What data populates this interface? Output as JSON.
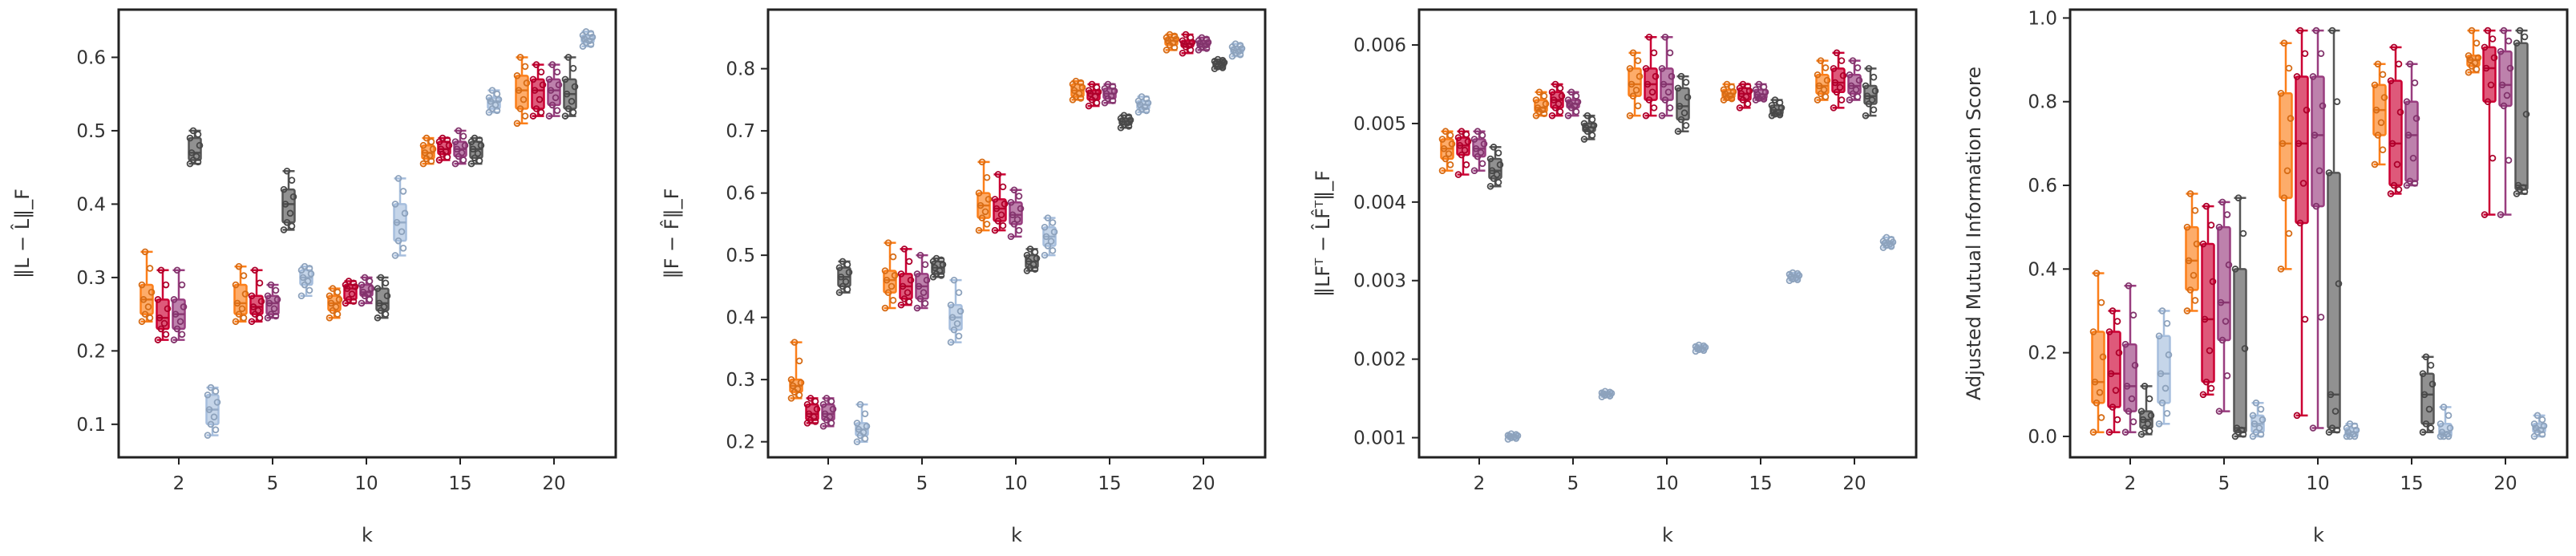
{
  "colors": {
    "orange": "#fc7f1a",
    "red": "#cc0033",
    "purple": "#993d7f",
    "darkgray": "#555555",
    "lightblue": "#a6bedd"
  },
  "chart_data": [
    {
      "type": "box",
      "title": "",
      "xlabel": "k",
      "ylabel": "‖L − L̂‖_F",
      "categories": [
        "2",
        "5",
        "10",
        "15",
        "20"
      ],
      "yticks": [
        0.1,
        0.2,
        0.3,
        0.4,
        0.5,
        0.6
      ],
      "ylim": [
        0.055,
        0.665
      ],
      "series": [
        {
          "color": "orange",
          "boxes": [
            [
              0.24,
              0.25,
              0.27,
              0.29,
              0.335
            ],
            [
              0.24,
              0.25,
              0.265,
              0.29,
              0.315
            ],
            [
              0.245,
              0.255,
              0.265,
              0.275,
              0.285
            ],
            [
              0.455,
              0.462,
              0.47,
              0.48,
              0.49
            ],
            [
              0.51,
              0.53,
              0.555,
              0.575,
              0.6
            ]
          ]
        },
        {
          "color": "red",
          "boxes": [
            [
              0.215,
              0.23,
              0.245,
              0.27,
              0.31
            ],
            [
              0.24,
              0.25,
              0.26,
              0.275,
              0.31
            ],
            [
              0.265,
              0.27,
              0.285,
              0.29,
              0.295
            ],
            [
              0.46,
              0.468,
              0.475,
              0.485,
              0.49
            ],
            [
              0.52,
              0.53,
              0.555,
              0.57,
              0.59
            ]
          ]
        },
        {
          "color": "purple",
          "boxes": [
            [
              0.215,
              0.23,
              0.25,
              0.27,
              0.31
            ],
            [
              0.245,
              0.25,
              0.265,
              0.275,
              0.29
            ],
            [
              0.265,
              0.275,
              0.28,
              0.29,
              0.3
            ],
            [
              0.455,
              0.465,
              0.475,
              0.485,
              0.5
            ],
            [
              0.52,
              0.535,
              0.555,
              0.57,
              0.59
            ]
          ]
        },
        {
          "color": "darkgray",
          "boxes": [
            [
              0.455,
              0.46,
              0.47,
              0.49,
              0.5
            ],
            [
              0.365,
              0.375,
              0.4,
              0.42,
              0.445
            ],
            [
              0.245,
              0.255,
              0.265,
              0.285,
              0.3
            ],
            [
              0.455,
              0.463,
              0.475,
              0.485,
              0.49
            ],
            [
              0.52,
              0.53,
              0.55,
              0.57,
              0.6
            ]
          ]
        },
        {
          "color": "lightblue",
          "boxes": [
            [
              0.085,
              0.1,
              0.12,
              0.14,
              0.15
            ],
            [
              0.275,
              0.29,
              0.3,
              0.31,
              0.315
            ],
            [
              0.33,
              0.35,
              0.375,
              0.4,
              0.435
            ],
            [
              0.525,
              0.53,
              0.54,
              0.545,
              0.555
            ],
            [
              0.615,
              0.62,
              0.625,
              0.63,
              0.635
            ]
          ]
        }
      ]
    },
    {
      "type": "box",
      "title": "",
      "xlabel": "k",
      "ylabel": "‖F − F̂‖_F",
      "categories": [
        "2",
        "5",
        "10",
        "15",
        "20"
      ],
      "yticks": [
        0.2,
        0.3,
        0.4,
        0.5,
        0.6,
        0.7,
        0.8
      ],
      "ylim": [
        0.175,
        0.895
      ],
      "series": [
        {
          "color": "orange",
          "boxes": [
            [
              0.27,
              0.28,
              0.29,
              0.3,
              0.36
            ],
            [
              0.415,
              0.44,
              0.46,
              0.475,
              0.52
            ],
            [
              0.54,
              0.56,
              0.58,
              0.6,
              0.65
            ],
            [
              0.75,
              0.755,
              0.765,
              0.775,
              0.78
            ],
            [
              0.83,
              0.838,
              0.845,
              0.85,
              0.855
            ]
          ]
        },
        {
          "color": "red",
          "boxes": [
            [
              0.23,
              0.235,
              0.245,
              0.26,
              0.27
            ],
            [
              0.42,
              0.43,
              0.45,
              0.47,
              0.51
            ],
            [
              0.54,
              0.555,
              0.575,
              0.59,
              0.63
            ],
            [
              0.74,
              0.75,
              0.76,
              0.765,
              0.775
            ],
            [
              0.825,
              0.835,
              0.84,
              0.845,
              0.855
            ]
          ]
        },
        {
          "color": "purple",
          "boxes": [
            [
              0.225,
              0.235,
              0.245,
              0.26,
              0.27
            ],
            [
              0.415,
              0.43,
              0.45,
              0.47,
              0.5
            ],
            [
              0.53,
              0.55,
              0.565,
              0.585,
              0.605
            ],
            [
              0.745,
              0.752,
              0.76,
              0.768,
              0.775
            ],
            [
              0.83,
              0.835,
              0.84,
              0.845,
              0.85
            ]
          ]
        },
        {
          "color": "darkgray",
          "boxes": [
            [
              0.44,
              0.45,
              0.465,
              0.48,
              0.49
            ],
            [
              0.465,
              0.47,
              0.48,
              0.49,
              0.495
            ],
            [
              0.475,
              0.48,
              0.49,
              0.5,
              0.51
            ],
            [
              0.705,
              0.71,
              0.715,
              0.72,
              0.725
            ],
            [
              0.8,
              0.803,
              0.808,
              0.812,
              0.815
            ]
          ]
        },
        {
          "color": "lightblue",
          "boxes": [
            [
              0.2,
              0.21,
              0.22,
              0.23,
              0.26
            ],
            [
              0.36,
              0.38,
              0.4,
              0.42,
              0.46
            ],
            [
              0.5,
              0.515,
              0.53,
              0.545,
              0.56
            ],
            [
              0.73,
              0.735,
              0.742,
              0.748,
              0.755
            ],
            [
              0.82,
              0.825,
              0.83,
              0.835,
              0.84
            ]
          ]
        }
      ]
    },
    {
      "type": "box",
      "title": "",
      "xlabel": "k",
      "ylabel": "‖LFᵀ − L̂F̂ᵀ‖_F",
      "categories": [
        "2",
        "5",
        "10",
        "15",
        "20"
      ],
      "yticks": [
        0.001,
        0.002,
        0.003,
        0.004,
        0.005,
        0.006
      ],
      "ylim": [
        0.00075,
        0.00645
      ],
      "series": [
        {
          "color": "orange",
          "boxes": [
            [
              0.0044,
              0.00455,
              0.00468,
              0.0048,
              0.0049
            ],
            [
              0.0051,
              0.00515,
              0.0052,
              0.0053,
              0.0054
            ],
            [
              0.0051,
              0.00535,
              0.0055,
              0.0057,
              0.0059
            ],
            [
              0.0053,
              0.00533,
              0.00538,
              0.00543,
              0.0055
            ],
            [
              0.0053,
              0.00538,
              0.00548,
              0.00562,
              0.0058
            ]
          ]
        },
        {
          "color": "red",
          "boxes": [
            [
              0.00435,
              0.0046,
              0.00472,
              0.00482,
              0.0049
            ],
            [
              0.0051,
              0.0052,
              0.0053,
              0.0054,
              0.0055
            ],
            [
              0.0051,
              0.0053,
              0.0055,
              0.0057,
              0.0061
            ],
            [
              0.0052,
              0.0053,
              0.00538,
              0.00545,
              0.0055
            ],
            [
              0.0052,
              0.0054,
              0.00552,
              0.0057,
              0.0059
            ]
          ]
        },
        {
          "color": "purple",
          "boxes": [
            [
              0.0044,
              0.00458,
              0.00468,
              0.0048,
              0.0049
            ],
            [
              0.0051,
              0.0052,
              0.00525,
              0.0053,
              0.0054
            ],
            [
              0.0051,
              0.0053,
              0.0055,
              0.0057,
              0.0061
            ],
            [
              0.0053,
              0.00532,
              0.00537,
              0.00543,
              0.0055
            ],
            [
              0.0053,
              0.00538,
              0.00548,
              0.00562,
              0.0058
            ]
          ]
        },
        {
          "color": "darkgray",
          "boxes": [
            [
              0.0042,
              0.0043,
              0.0044,
              0.00455,
              0.0047
            ],
            [
              0.0048,
              0.0049,
              0.00495,
              0.005,
              0.0051
            ],
            [
              0.0049,
              0.00505,
              0.00522,
              0.00545,
              0.0056
            ],
            [
              0.0051,
              0.00512,
              0.00517,
              0.00523,
              0.0053
            ],
            [
              0.0051,
              0.00525,
              0.00535,
              0.00548,
              0.0057
            ]
          ]
        },
        {
          "color": "lightblue",
          "boxes": [
            [
              0.00098,
              0.001,
              0.00102,
              0.00103,
              0.00105
            ],
            [
              0.00152,
              0.00154,
              0.00156,
              0.00157,
              0.00159
            ],
            [
              0.0021,
              0.00212,
              0.00214,
              0.00216,
              0.00218
            ],
            [
              0.003,
              0.00302,
              0.00305,
              0.00308,
              0.0031
            ],
            [
              0.00342,
              0.00345,
              0.00348,
              0.0035,
              0.00355
            ]
          ]
        }
      ]
    },
    {
      "type": "box",
      "title": "",
      "xlabel": "k",
      "ylabel": "Adjusted Mutual Information Score",
      "categories": [
        "2",
        "5",
        "10",
        "15",
        "20"
      ],
      "yticks": [
        0.0,
        0.2,
        0.4,
        0.6,
        0.8,
        1.0
      ],
      "ylim": [
        -0.05,
        1.02
      ],
      "series": [
        {
          "color": "orange",
          "boxes": [
            [
              0.01,
              0.08,
              0.13,
              0.25,
              0.39
            ],
            [
              0.3,
              0.35,
              0.42,
              0.5,
              0.58
            ],
            [
              0.4,
              0.57,
              0.7,
              0.82,
              0.94
            ],
            [
              0.65,
              0.72,
              0.78,
              0.84,
              0.89
            ],
            [
              0.87,
              0.885,
              0.9,
              0.91,
              0.97
            ]
          ]
        },
        {
          "color": "red",
          "boxes": [
            [
              0.01,
              0.07,
              0.15,
              0.25,
              0.3
            ],
            [
              0.1,
              0.13,
              0.28,
              0.46,
              0.55
            ],
            [
              0.05,
              0.51,
              0.7,
              0.86,
              0.97
            ],
            [
              0.58,
              0.6,
              0.7,
              0.85,
              0.93
            ],
            [
              0.53,
              0.8,
              0.88,
              0.93,
              0.97
            ]
          ]
        },
        {
          "color": "purple",
          "boxes": [
            [
              0.01,
              0.06,
              0.12,
              0.22,
              0.36
            ],
            [
              0.06,
              0.23,
              0.32,
              0.5,
              0.56
            ],
            [
              0.02,
              0.55,
              0.72,
              0.86,
              0.97
            ],
            [
              0.6,
              0.61,
              0.72,
              0.8,
              0.89
            ],
            [
              0.53,
              0.79,
              0.84,
              0.92,
              0.97
            ]
          ]
        },
        {
          "color": "darkgray",
          "boxes": [
            [
              0.005,
              0.02,
              0.04,
              0.06,
              0.12
            ],
            [
              0.0,
              0.01,
              0.02,
              0.4,
              0.57
            ],
            [
              0.01,
              0.02,
              0.1,
              0.63,
              0.97
            ],
            [
              0.01,
              0.03,
              0.1,
              0.15,
              0.19
            ],
            [
              0.58,
              0.59,
              0.6,
              0.94,
              0.97
            ]
          ]
        },
        {
          "color": "lightblue",
          "boxes": [
            [
              0.03,
              0.08,
              0.15,
              0.24,
              0.3
            ],
            [
              0.0,
              0.01,
              0.03,
              0.05,
              0.08
            ],
            [
              0.0,
              0.0,
              0.01,
              0.02,
              0.03
            ],
            [
              0.0,
              0.0,
              0.01,
              0.03,
              0.07
            ],
            [
              0.0,
              0.01,
              0.02,
              0.03,
              0.05
            ]
          ]
        }
      ]
    }
  ]
}
